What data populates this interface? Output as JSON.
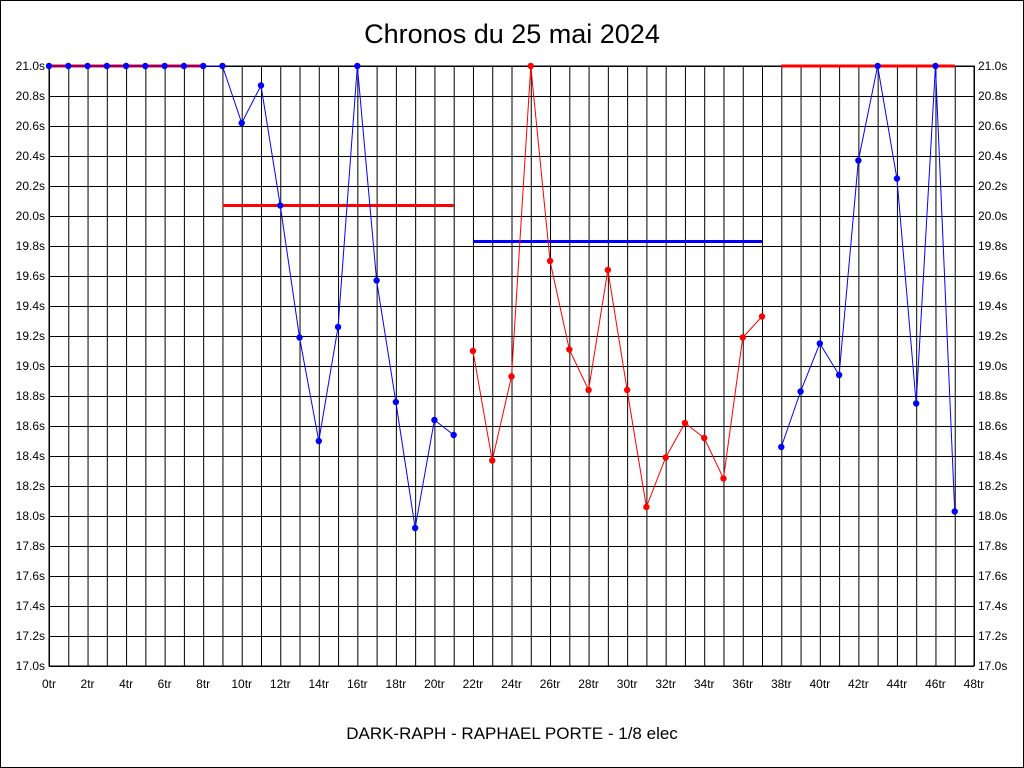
{
  "chart_data": {
    "type": "line",
    "title": "Chronos du 25 mai 2024",
    "xlabel": "DARK-RAPH - RAPHAEL PORTE - 1/8 elec",
    "ylabel": "",
    "xlim": [
      0,
      48
    ],
    "ylim": [
      17.0,
      21.0
    ],
    "grid": true,
    "x_ticks": [
      "0tr",
      "2tr",
      "4tr",
      "6tr",
      "8tr",
      "10tr",
      "12tr",
      "14tr",
      "16tr",
      "18tr",
      "20tr",
      "22tr",
      "24tr",
      "26tr",
      "28tr",
      "30tr",
      "32tr",
      "34tr",
      "36tr",
      "38tr",
      "40tr",
      "42tr",
      "44tr",
      "46tr",
      "48tr"
    ],
    "y_ticks": [
      "17.0s",
      "17.2s",
      "17.4s",
      "17.6s",
      "17.8s",
      "18.0s",
      "18.2s",
      "18.4s",
      "18.6s",
      "18.8s",
      "19.0s",
      "19.2s",
      "19.4s",
      "19.6s",
      "19.8s",
      "20.0s",
      "20.2s",
      "20.4s",
      "20.6s",
      "20.8s",
      "21.0s"
    ],
    "series": [
      {
        "color": "#0000ff",
        "x": [
          0,
          1,
          2,
          3,
          4,
          5,
          6,
          7,
          8,
          9,
          10,
          11,
          12,
          13,
          14,
          15,
          16,
          17,
          18,
          19,
          20,
          21
        ],
        "values": [
          21.0,
          21.0,
          21.0,
          21.0,
          21.0,
          21.0,
          21.0,
          21.0,
          21.0,
          21.0,
          20.62,
          20.87,
          20.07,
          19.19,
          18.5,
          19.26,
          21.0,
          19.57,
          18.76,
          17.92,
          18.64,
          18.54
        ]
      },
      {
        "color": "#ff0000",
        "x": [
          22,
          23,
          24,
          25,
          26,
          27,
          28,
          29,
          30,
          31,
          32,
          33,
          34,
          35,
          36,
          37
        ],
        "values": [
          19.1,
          18.37,
          18.93,
          21.0,
          19.7,
          19.11,
          18.84,
          19.64,
          18.84,
          18.06,
          18.39,
          18.62,
          18.52,
          18.25,
          19.19,
          19.33
        ]
      },
      {
        "color": "#0000ff",
        "x": [
          38,
          39,
          40,
          41,
          42,
          43,
          44,
          45,
          46,
          47
        ],
        "values": [
          18.46,
          18.83,
          19.15,
          18.94,
          20.37,
          21.0,
          20.25,
          18.75,
          21.0,
          18.03
        ]
      }
    ],
    "reference_lines": [
      {
        "color": "#ff0000",
        "x": [
          0,
          8
        ],
        "value": 21.0
      },
      {
        "color": "#ff0000",
        "x": [
          9,
          21
        ],
        "value": 20.07
      },
      {
        "color": "#0000ff",
        "x": [
          22,
          37
        ],
        "value": 19.83
      },
      {
        "color": "#ff0000",
        "x": [
          38,
          47
        ],
        "value": 21.0
      }
    ]
  }
}
